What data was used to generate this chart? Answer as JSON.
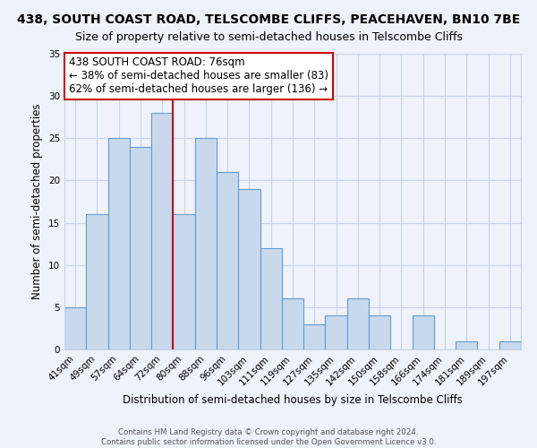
{
  "title1": "438, SOUTH COAST ROAD, TELSCOMBE CLIFFS, PEACEHAVEN, BN10 7BE",
  "title2": "Size of property relative to semi-detached houses in Telscombe Cliffs",
  "xlabel": "Distribution of semi-detached houses by size in Telscombe Cliffs",
  "ylabel": "Number of semi-detached properties",
  "footnote1": "Contains HM Land Registry data © Crown copyright and database right 2024.",
  "footnote2": "Contains public sector information licensed under the Open Government Licence v3.0.",
  "bin_labels": [
    "41sqm",
    "49sqm",
    "57sqm",
    "64sqm",
    "72sqm",
    "80sqm",
    "88sqm",
    "96sqm",
    "103sqm",
    "111sqm",
    "119sqm",
    "127sqm",
    "135sqm",
    "142sqm",
    "150sqm",
    "158sqm",
    "166sqm",
    "174sqm",
    "181sqm",
    "189sqm",
    "197sqm"
  ],
  "bar_values": [
    5,
    16,
    25,
    24,
    28,
    16,
    25,
    21,
    19,
    12,
    6,
    3,
    4,
    6,
    4,
    0,
    4,
    0,
    1,
    0,
    1
  ],
  "bar_color": "#c9d9ed",
  "bar_edge_color": "#6699cc",
  "property_label": "438 SOUTH COAST ROAD: 76sqm",
  "pct_smaller": 38,
  "num_smaller": 83,
  "pct_larger": 62,
  "num_larger": 136,
  "red_line_x": 4.5,
  "ylim": [
    0,
    35
  ],
  "yticks": [
    0,
    5,
    10,
    15,
    20,
    25,
    30,
    35
  ],
  "grid_color": "#c8d4e8",
  "background_color": "#eef2fa",
  "box_color": "#ffffff",
  "box_edge_color": "#cc0000",
  "title_fontsize": 10,
  "subtitle_fontsize": 9,
  "axis_label_fontsize": 8.5,
  "tick_fontsize": 7.5,
  "annotation_fontsize": 8.5
}
